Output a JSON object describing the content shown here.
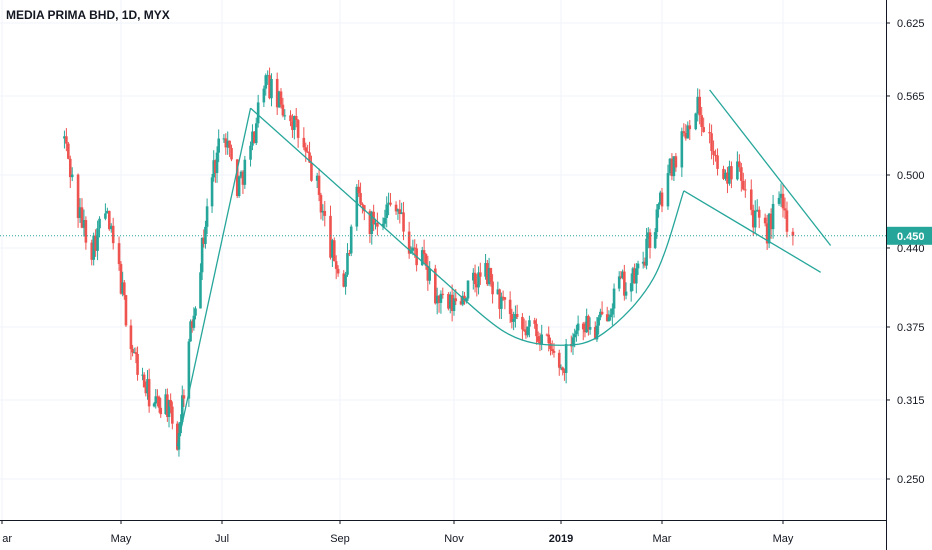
{
  "title": "MEDIA PRIMA BHD, 1D, MYX",
  "colors": {
    "up": "#26a69a",
    "down": "#ef5350",
    "trend": "#26a69a",
    "grid": "#f0f3fa",
    "axis": "#131722",
    "last_price": "#26a69a"
  },
  "chart_data": {
    "type": "candlestick",
    "title": "MEDIA PRIMA BHD, 1D, MYX",
    "ylim": [
      0.22,
      0.635
    ],
    "y_ticks": [
      "0.625",
      "0.565",
      "0.500",
      "0.440",
      "0.375",
      "0.315",
      "0.250"
    ],
    "x_ticks": [
      "ar",
      "May",
      "Jul",
      "Sep",
      "Nov",
      "2019",
      "Mar",
      "May"
    ],
    "last_price": "0.450",
    "grid": true,
    "price_path": [
      [
        "2018-04-02",
        0.53
      ],
      [
        "2018-04-09",
        0.47
      ],
      [
        "2018-04-16",
        0.44
      ],
      [
        "2018-04-23",
        0.47
      ],
      [
        "2018-04-30",
        0.42
      ],
      [
        "2018-05-07",
        0.36
      ],
      [
        "2018-05-14",
        0.33
      ],
      [
        "2018-05-21",
        0.31
      ],
      [
        "2018-05-28",
        0.315
      ],
      [
        "2018-06-04",
        0.28
      ],
      [
        "2018-06-11",
        0.36
      ],
      [
        "2018-06-18",
        0.43
      ],
      [
        "2018-06-25",
        0.5
      ],
      [
        "2018-07-02",
        0.54
      ],
      [
        "2018-07-09",
        0.49
      ],
      [
        "2018-07-16",
        0.52
      ],
      [
        "2018-07-23",
        0.58
      ],
      [
        "2018-07-30",
        0.56
      ],
      [
        "2018-08-06",
        0.55
      ],
      [
        "2018-08-13",
        0.52
      ],
      [
        "2018-08-20",
        0.49
      ],
      [
        "2018-08-27",
        0.44
      ],
      [
        "2018-09-03",
        0.41
      ],
      [
        "2018-09-10",
        0.48
      ],
      [
        "2018-09-17",
        0.46
      ],
      [
        "2018-09-24",
        0.47
      ],
      [
        "2018-10-01",
        0.48
      ],
      [
        "2018-10-08",
        0.44
      ],
      [
        "2018-10-15",
        0.43
      ],
      [
        "2018-10-22",
        0.4
      ],
      [
        "2018-10-29",
        0.39
      ],
      [
        "2018-11-05",
        0.4
      ],
      [
        "2018-11-12",
        0.41
      ],
      [
        "2018-11-19",
        0.42
      ],
      [
        "2018-11-26",
        0.4
      ],
      [
        "2018-12-03",
        0.38
      ],
      [
        "2018-12-10",
        0.37
      ],
      [
        "2018-12-17",
        0.375
      ],
      [
        "2018-12-24",
        0.36
      ],
      [
        "2019-01-02",
        0.34
      ],
      [
        "2019-01-07",
        0.37
      ],
      [
        "2019-01-14",
        0.38
      ],
      [
        "2019-01-21",
        0.37
      ],
      [
        "2019-01-28",
        0.39
      ],
      [
        "2019-02-04",
        0.41
      ],
      [
        "2019-02-11",
        0.41
      ],
      [
        "2019-02-18",
        0.43
      ],
      [
        "2019-02-25",
        0.46
      ],
      [
        "2019-03-04",
        0.5
      ],
      [
        "2019-03-11",
        0.53
      ],
      [
        "2019-03-18",
        0.56
      ],
      [
        "2019-03-25",
        0.53
      ],
      [
        "2019-04-01",
        0.49
      ],
      [
        "2019-04-08",
        0.52
      ],
      [
        "2019-04-15",
        0.47
      ],
      [
        "2019-04-22",
        0.45
      ],
      [
        "2019-04-29",
        0.48
      ],
      [
        "2019-05-06",
        0.45
      ]
    ],
    "trendlines": [
      {
        "name": "rise-line",
        "points": [
          [
            "2018-06-04",
            0.277
          ],
          [
            "2018-07-16",
            0.555
          ]
        ]
      },
      {
        "name": "fall-line",
        "points": [
          [
            "2018-07-16",
            0.555
          ],
          [
            "2018-10-25",
            0.415
          ]
        ]
      },
      {
        "name": "rounding-bottom",
        "points": [
          [
            "2018-10-25",
            0.415
          ],
          [
            "2018-12-01",
            0.37
          ],
          [
            "2019-01-01",
            0.36
          ],
          [
            "2019-01-26",
            0.37
          ],
          [
            "2019-02-24",
            0.415
          ],
          [
            "2019-03-12",
            0.487
          ]
        ]
      },
      {
        "name": "channel-upper",
        "points": [
          [
            "2019-03-25",
            0.57
          ],
          [
            "2019-05-25",
            0.442
          ]
        ]
      },
      {
        "name": "channel-lower",
        "points": [
          [
            "2019-03-12",
            0.487
          ],
          [
            "2019-05-20",
            0.42
          ]
        ]
      }
    ]
  }
}
